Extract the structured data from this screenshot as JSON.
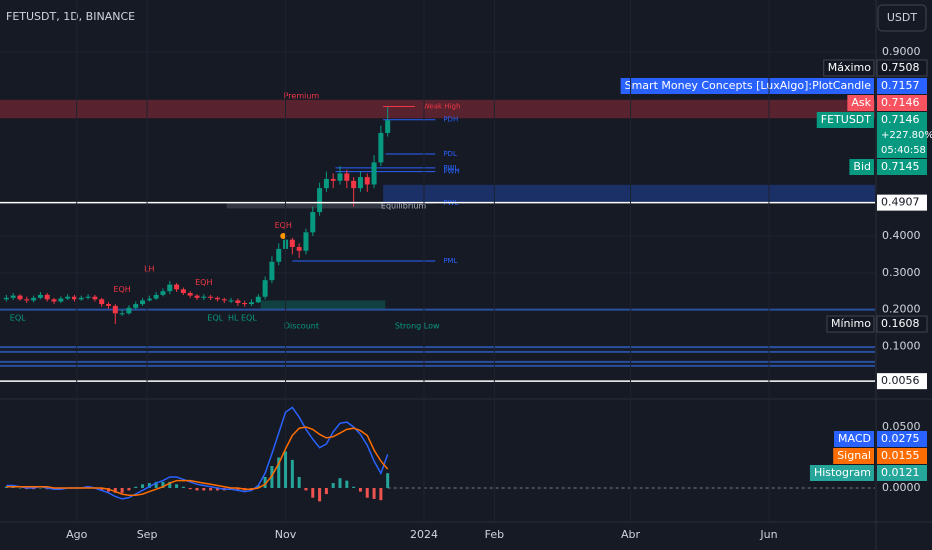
{
  "header": {
    "symbol": "FETUSDT, 1D, BINANCE",
    "currency": "USDT"
  },
  "chart_data": [
    {
      "type": "candlestick",
      "x": [
        0,
        3,
        6,
        9,
        12,
        15,
        18,
        21,
        24,
        27,
        30,
        33,
        36,
        39,
        42,
        45,
        48,
        51,
        54,
        57,
        60,
        63,
        66,
        69,
        72,
        75,
        78,
        81,
        84,
        87,
        90,
        93,
        96,
        99,
        102,
        105,
        108,
        111,
        114,
        117,
        120,
        123,
        126,
        129,
        132,
        135,
        138,
        141,
        144,
        147,
        150,
        153,
        156,
        159,
        162,
        165,
        168
      ],
      "open": [
        0.228,
        0.232,
        0.238,
        0.228,
        0.225,
        0.232,
        0.24,
        0.228,
        0.222,
        0.23,
        0.235,
        0.228,
        0.232,
        0.235,
        0.228,
        0.215,
        0.21,
        0.19,
        0.19,
        0.205,
        0.215,
        0.225,
        0.23,
        0.24,
        0.25,
        0.268,
        0.255,
        0.245,
        0.238,
        0.232,
        0.235,
        0.232,
        0.228,
        0.225,
        0.225,
        0.218,
        0.215,
        0.22,
        0.235,
        0.28,
        0.33,
        0.365,
        0.39,
        0.37,
        0.36,
        0.41,
        0.465,
        0.53,
        0.555,
        0.55,
        0.57,
        0.55,
        0.53,
        0.56,
        0.54,
        0.6,
        0.68
      ],
      "high": [
        0.24,
        0.245,
        0.242,
        0.235,
        0.238,
        0.248,
        0.245,
        0.232,
        0.236,
        0.242,
        0.24,
        0.238,
        0.242,
        0.24,
        0.232,
        0.22,
        0.215,
        0.2,
        0.212,
        0.222,
        0.232,
        0.238,
        0.248,
        0.258,
        0.278,
        0.272,
        0.26,
        0.25,
        0.242,
        0.242,
        0.24,
        0.236,
        0.232,
        0.232,
        0.23,
        0.224,
        0.228,
        0.242,
        0.29,
        0.345,
        0.38,
        0.4,
        0.395,
        0.38,
        0.42,
        0.48,
        0.545,
        0.575,
        0.57,
        0.59,
        0.58,
        0.56,
        0.575,
        0.57,
        0.62,
        0.7,
        0.7508
      ],
      "low": [
        0.222,
        0.226,
        0.224,
        0.218,
        0.22,
        0.228,
        0.222,
        0.215,
        0.218,
        0.226,
        0.222,
        0.224,
        0.228,
        0.222,
        0.208,
        0.202,
        0.1608,
        0.183,
        0.186,
        0.2,
        0.21,
        0.222,
        0.226,
        0.236,
        0.242,
        0.248,
        0.24,
        0.232,
        0.226,
        0.226,
        0.226,
        0.222,
        0.218,
        0.218,
        0.21,
        0.208,
        0.21,
        0.218,
        0.228,
        0.272,
        0.32,
        0.35,
        0.35,
        0.34,
        0.35,
        0.4,
        0.455,
        0.52,
        0.53,
        0.54,
        0.53,
        0.48,
        0.52,
        0.52,
        0.53,
        0.59,
        0.67
      ],
      "close": [
        0.232,
        0.238,
        0.228,
        0.225,
        0.232,
        0.24,
        0.228,
        0.222,
        0.23,
        0.235,
        0.228,
        0.232,
        0.235,
        0.228,
        0.215,
        0.21,
        0.19,
        0.19,
        0.205,
        0.215,
        0.225,
        0.23,
        0.24,
        0.25,
        0.268,
        0.255,
        0.245,
        0.238,
        0.232,
        0.235,
        0.232,
        0.228,
        0.225,
        0.225,
        0.218,
        0.215,
        0.22,
        0.235,
        0.28,
        0.33,
        0.365,
        0.39,
        0.37,
        0.36,
        0.41,
        0.465,
        0.53,
        0.555,
        0.55,
        0.57,
        0.55,
        0.53,
        0.56,
        0.54,
        0.6,
        0.68,
        0.7146
      ],
      "up_color": "#089981",
      "down_color": "#f23645",
      "xlim": [
        -2.8,
        382.7
      ],
      "ylim": [
        -0.0402,
        1.0413
      ],
      "yticks": [
        {
          "value": 0.9,
          "label": "0.9000"
        },
        {
          "value": 0.4,
          "label": "0.4000"
        },
        {
          "value": 0.3,
          "label": "0.3000"
        },
        {
          "value": 0.2,
          "label": "0.2000"
        },
        {
          "value": 0.1,
          "label": "0.1000"
        }
      ],
      "grid": true,
      "zones": [
        {
          "low": 0.72,
          "high": 0.77,
          "color": "#f23645"
        },
        {
          "low": 0.2,
          "high": 0.225,
          "from": 112,
          "to": 167,
          "color": "#089981"
        },
        {
          "low": 0.492,
          "high": 0.539,
          "from": 166,
          "to": 382.7,
          "color": "#2962ff"
        },
        {
          "low": 0.475,
          "high": 0.49,
          "from": 97,
          "to": 167,
          "color": "#787b86"
        }
      ],
      "levels": [
        {
          "label": "Weak High",
          "value": 0.752,
          "from": 166,
          "to": 180,
          "color": "#f23645"
        },
        {
          "label": "PDH",
          "value": 0.716,
          "from": 166,
          "to": 189,
          "color": "#2962ff"
        },
        {
          "label": "PDL",
          "value": 0.623,
          "from": 167,
          "to": 189,
          "color": "#2962ff"
        },
        {
          "label": "PWL",
          "value": 0.585,
          "from": 145,
          "to": 189,
          "color": "#2962ff"
        },
        {
          "label": "PWH",
          "value": 0.575,
          "from": 145,
          "to": 189,
          "color": "#2962ff"
        },
        {
          "label": "PWL",
          "value": 0.49,
          "from": 166,
          "to": 189,
          "color": "#2962ff"
        },
        {
          "label": "PML",
          "value": 0.332,
          "from": 126,
          "to": 189,
          "color": "#2962ff"
        }
      ],
      "hlines": [
        0.2,
        0.098,
        0.085,
        0.058,
        0.047
      ],
      "hline_color": "#2a4f9e",
      "annotations": [
        {
          "text": "Premium",
          "x": 130,
          "price": 0.78,
          "color": "#f23645"
        },
        {
          "text": "Equilibrium",
          "x": 175,
          "price": 0.482,
          "color": "#b2b5be"
        },
        {
          "text": "Discount",
          "x": 130,
          "price": 0.155,
          "color": "#089981"
        },
        {
          "text": "Strong Low",
          "x": 181,
          "price": 0.155,
          "color": "#089981"
        },
        {
          "text": "EQL",
          "x": 5,
          "price": 0.177,
          "color": "#089981"
        },
        {
          "text": "EQL",
          "x": 92,
          "price": 0.177,
          "color": "#089981"
        },
        {
          "text": "HL EQL",
          "x": 104,
          "price": 0.177,
          "color": "#089981"
        },
        {
          "text": "EQH",
          "x": 51,
          "price": 0.255,
          "color": "#f23645"
        },
        {
          "text": "LH",
          "x": 63,
          "price": 0.31,
          "color": "#f23645"
        },
        {
          "text": "EQH",
          "x": 87,
          "price": 0.274,
          "color": "#f23645"
        },
        {
          "text": "EQH",
          "x": 122,
          "price": 0.428,
          "color": "#f23645"
        }
      ],
      "markers": [
        {
          "x": 122,
          "price": 0.4,
          "color": "#ff9800"
        }
      ],
      "price_labels": [
        {
          "name": "Máximo",
          "value": 0.7508,
          "color": "#131722"
        },
        {
          "name": "Smart Money Concepts [LuxAlgo]:PlotCandle",
          "value": 0.7157,
          "color": "#2962ff"
        },
        {
          "name": "Ask",
          "value": 0.7146,
          "color": "#f7525f"
        },
        {
          "name": "FETUSDT",
          "value": 0.7146,
          "change": 227.8,
          "change_label": "+227.80%",
          "countdown": "05:40:58",
          "color": "#089981"
        },
        {
          "name": "Bid",
          "value": 0.7145,
          "color": "#089981"
        },
        {
          "value": 0.4907,
          "color": "#ffffff",
          "line": true
        },
        {
          "name": "Mínimo",
          "value": 0.1608,
          "color": "#131722"
        },
        {
          "value": 0.0056,
          "color": "#ffffff",
          "line": true
        }
      ]
    },
    {
      "type": "macd",
      "x": [
        0,
        3,
        6,
        9,
        12,
        15,
        18,
        21,
        24,
        27,
        30,
        33,
        36,
        39,
        42,
        45,
        48,
        51,
        54,
        57,
        60,
        63,
        66,
        69,
        72,
        75,
        78,
        81,
        84,
        87,
        90,
        93,
        96,
        99,
        102,
        105,
        108,
        111,
        114,
        117,
        120,
        123,
        126,
        129,
        132,
        135,
        138,
        141,
        144,
        147,
        150,
        153,
        156,
        159,
        162,
        165,
        168
      ],
      "series": [
        {
          "name": "MACD",
          "color": "#2962ff",
          "values": [
            0.002,
            0.002,
            0.001,
            0,
            0,
            0.001,
            0,
            -0.001,
            -0.001,
            0,
            0,
            0,
            0.001,
            0,
            -0.002,
            -0.004,
            -0.007,
            -0.009,
            -0.008,
            -0.005,
            -0.002,
            0.001,
            0.004,
            0.006,
            0.009,
            0.009,
            0.007,
            0.005,
            0.003,
            0.002,
            0.001,
            0,
            -0.001,
            -0.001,
            -0.002,
            -0.003,
            -0.002,
            0.002,
            0.012,
            0.028,
            0.045,
            0.062,
            0.066,
            0.058,
            0.048,
            0.04,
            0.033,
            0.036,
            0.046,
            0.053,
            0.054,
            0.05,
            0.044,
            0.035,
            0.022,
            0.012,
            0.0275
          ]
        },
        {
          "name": "Signal",
          "color": "#ff6d00",
          "values": [
            0.001,
            0.001,
            0.001,
            0.001,
            0.001,
            0.001,
            0.001,
            0,
            0,
            0,
            0,
            0,
            0,
            0,
            0,
            -0.001,
            -0.003,
            -0.005,
            -0.006,
            -0.006,
            -0.005,
            -0.003,
            -0.001,
            0.001,
            0.004,
            0.006,
            0.006,
            0.006,
            0.005,
            0.004,
            0.003,
            0.002,
            0.001,
            0,
            0,
            -0.001,
            -0.001,
            0,
            0.003,
            0.01,
            0.02,
            0.032,
            0.043,
            0.049,
            0.05,
            0.048,
            0.044,
            0.041,
            0.042,
            0.045,
            0.048,
            0.049,
            0.047,
            0.043,
            0.031,
            0.022,
            0.0155
          ]
        },
        {
          "name": "Histogram",
          "color": "#26a69a",
          "down_color": "#ef5350",
          "values": [
            0.001,
            0.001,
            0,
            -0.001,
            -0.001,
            0,
            -0.001,
            -0.001,
            -0.001,
            0,
            0,
            0,
            0.001,
            0,
            -0.002,
            -0.003,
            -0.004,
            -0.004,
            -0.002,
            0.001,
            0.003,
            0.004,
            0.005,
            0.005,
            0.005,
            0.003,
            0.001,
            -0.001,
            -0.002,
            -0.002,
            -0.002,
            -0.002,
            -0.002,
            -0.001,
            -0.002,
            -0.002,
            -0.001,
            0.002,
            0.009,
            0.018,
            0.025,
            0.03,
            0.023,
            0.009,
            -0.002,
            -0.008,
            -0.011,
            -0.005,
            0.004,
            0.008,
            0.006,
            0.001,
            -0.003,
            -0.008,
            -0.009,
            -0.01,
            0.0121
          ]
        }
      ],
      "xlim": [
        -2.8,
        382.7
      ],
      "ylim": [
        -0.0279,
        0.0721
      ],
      "yticks": [
        {
          "value": 0.05,
          "label": "0.0500"
        },
        {
          "value": 0,
          "label": "0.0000"
        }
      ],
      "xticks": [
        {
          "value": 31,
          "label": "Ago"
        },
        {
          "value": 62,
          "label": "Sep"
        },
        {
          "value": 123,
          "label": "Nov"
        },
        {
          "value": 184,
          "label": "2024"
        },
        {
          "value": 215,
          "label": "Feb"
        },
        {
          "value": 275,
          "label": "Abr"
        },
        {
          "value": 336,
          "label": "Jun"
        }
      ]
    }
  ]
}
